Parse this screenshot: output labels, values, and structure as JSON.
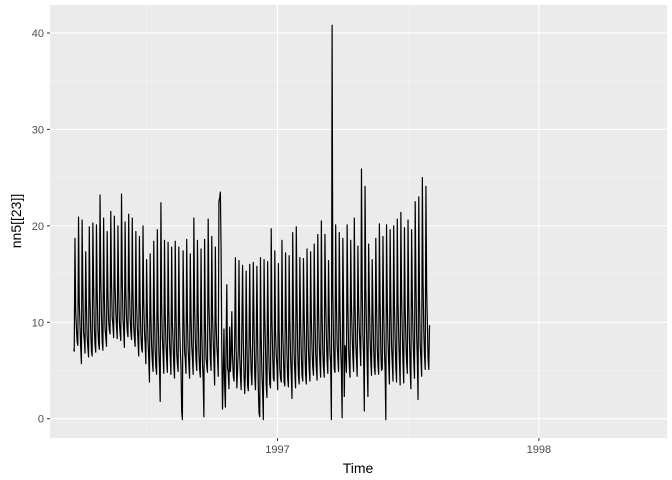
{
  "colors": {
    "panel": "#ebebeb",
    "grid_major": "#ffffff",
    "grid_minor": "#f5f5f5",
    "line": "#000000",
    "tick_text": "#4d4d4d"
  },
  "chart_data": {
    "type": "line",
    "title": "",
    "xlabel": "Time",
    "ylabel": "nn5[[23]]",
    "xlim": [
      1996.13,
      1998.49
    ],
    "ylim": [
      -2.0,
      42.9
    ],
    "x_ticks": [
      1997,
      1998
    ],
    "x_tick_labels": [
      "1997",
      "1998"
    ],
    "y_ticks": [
      0,
      10,
      20,
      30,
      40
    ],
    "y_tick_labels": [
      "0",
      "10",
      "20",
      "30",
      "40"
    ],
    "grid": true,
    "legend": "none",
    "x_start": 1996.22,
    "x_step": 0.0027397,
    "series": [
      {
        "values": [
          7.2,
          7.0,
          18.7,
          11.2,
          9.5,
          8.0,
          7.6,
          20.9,
          12.1,
          9.8,
          7.4,
          5.7,
          20.6,
          13.5,
          9.0,
          8.2,
          6.8,
          17.3,
          11.7,
          8.6,
          7.4,
          6.4,
          19.9,
          12.4,
          9.2,
          7.1,
          6.5,
          20.3,
          14.0,
          9.6,
          7.7,
          6.9,
          20.1,
          13.1,
          9.4,
          7.8,
          7.2,
          23.2,
          14.9,
          10.6,
          8.0,
          7.1,
          20.8,
          12.9,
          9.4,
          8.5,
          7.5,
          19.4,
          13.0,
          10.2,
          9.2,
          8.8,
          21.5,
          14.3,
          10.5,
          9.7,
          8.4,
          21.0,
          13.8,
          11.1,
          9.5,
          8.3,
          20.0,
          13.5,
          10.1,
          8.9,
          8.1,
          23.3,
          14.6,
          10.4,
          9.2,
          7.4,
          20.4,
          13.2,
          10.5,
          9.1,
          8.5,
          21.2,
          13.8,
          10.6,
          9.0,
          8.2,
          20.8,
          12.9,
          9.6,
          8.4,
          7.5,
          19.4,
          12.0,
          9.6,
          8.1,
          6.5,
          18.9,
          11.8,
          8.8,
          7.3,
          6.9,
          20.0,
          12.2,
          9.1,
          7.7,
          5.7,
          16.5,
          11.0,
          8.1,
          6.3,
          3.8,
          17.1,
          10.7,
          7.6,
          6.0,
          4.9,
          18.4,
          10.9,
          7.1,
          5.3,
          4.6,
          19.6,
          10.8,
          7.4,
          5.3,
          1.8,
          22.4,
          12.0,
          8.4,
          6.7,
          4.7,
          18.5,
          10.9,
          7.9,
          6.2,
          4.8,
          18.3,
          11.4,
          8.0,
          6.4,
          4.6,
          17.8,
          10.0,
          7.9,
          5.5,
          4.2,
          18.4,
          11.3,
          7.0,
          5.7,
          4.9,
          17.8,
          10.1,
          7.3,
          5.5,
          0.8,
          -0.1,
          17.4,
          10.9,
          7.0,
          6.2,
          4.7,
          18.6,
          10.3,
          7.2,
          5.7,
          4.2,
          17.1,
          10.8,
          7.6,
          6.3,
          4.6,
          20.8,
          11.6,
          8.3,
          6.1,
          5.0,
          18.5,
          11.3,
          7.0,
          5.2,
          4.3,
          17.6,
          9.3,
          5.8,
          4.1,
          0.2,
          18.6,
          10.2,
          6.4,
          5.5,
          4.8,
          20.7,
          12.2,
          8.9,
          6.1,
          5.0,
          18.9,
          10.9,
          8.2,
          5.9,
          3.5,
          17.8,
          10.1,
          7.6,
          6.4,
          4.4,
          22.5,
          22.9,
          23.5,
          17.6,
          6.9,
          1.0,
          4.7,
          9.3,
          3.5,
          1.2,
          7.8,
          13.9,
          5.3,
          4.8,
          3.1,
          9.5,
          4.9,
          6.6,
          11.1,
          6.4,
          4.5,
          3.9,
          8.2,
          16.7,
          7.6,
          3.2,
          5.0,
          7.2,
          16.4,
          6.6,
          4.4,
          3.0,
          9.3,
          15.9,
          8.4,
          4.5,
          2.6,
          5.1,
          15.3,
          8.4,
          3.5,
          2.9,
          7.6,
          16.0,
          7.7,
          4.8,
          3.5,
          7.9,
          16.2,
          9.5,
          4.6,
          3.0,
          7.2,
          15.8,
          8.3,
          3.2,
          0.6,
          0.2,
          16.7,
          8.4,
          4.7,
          2.8,
          -0.1,
          16.5,
          10.5,
          7.4,
          3.5,
          2.2,
          16.3,
          9.5,
          5.5,
          3.6,
          3.2,
          19.7,
          10.3,
          6.8,
          4.2,
          3.9,
          17.4,
          9.0,
          6.7,
          5.5,
          3.0,
          16.1,
          9.3,
          5.2,
          4.2,
          3.8,
          18.5,
          9.2,
          6.5,
          3.8,
          3.4,
          17.2,
          10.3,
          6.7,
          4.2,
          3.3,
          16.9,
          10.1,
          6.5,
          4.5,
          2.1,
          19.3,
          11.2,
          6.6,
          4.8,
          3.2,
          19.9,
          12.0,
          7.0,
          4.5,
          3.6,
          16.7,
          10.3,
          6.7,
          4.5,
          3.9,
          16.6,
          10.8,
          7.3,
          4.6,
          3.6,
          17.6,
          10.8,
          7.1,
          5.2,
          3.9,
          17.3,
          10.4,
          7.2,
          5.3,
          4.5,
          18.1,
          11.1,
          7.0,
          5.2,
          4.0,
          19.1,
          11.5,
          7.8,
          5.8,
          4.3,
          20.5,
          11.1,
          7.1,
          5.3,
          4.3,
          19.1,
          12.6,
          8.7,
          6.0,
          4.7,
          16.4,
          10.5,
          6.8,
          5.8,
          -0.1,
          40.8,
          13.2,
          7.9,
          5.2,
          4.8,
          20.1,
          12.2,
          7.8,
          6.3,
          4.9,
          19.3,
          11.5,
          7.2,
          5.1,
          0.1,
          18.7,
          11.9,
          2.3,
          7.6,
          7.1,
          4.8,
          20.1,
          12.1,
          7.3,
          5.5,
          4.3,
          18.5,
          11.7,
          8.8,
          6.4,
          4.9,
          20.8,
          11.9,
          7.9,
          6.2,
          4.4,
          17.9,
          11.8,
          9.3,
          7.3,
          5.5,
          25.9,
          13.6,
          8.7,
          6.4,
          0.8,
          24.1,
          13.6,
          9.4,
          5.7,
          2.3,
          18.1,
          12.5,
          8.4,
          6.0,
          4.5,
          16.5,
          11.3,
          7.4,
          5.3,
          4.6,
          18.7,
          12.2,
          7.5,
          5.6,
          4.6,
          20.2,
          12.1,
          7.1,
          5.0,
          5.2,
          18.9,
          11.4,
          7.3,
          5.0,
          -0.1,
          20.1,
          12.2,
          8.1,
          5.8,
          3.6,
          19.6,
          11.8,
          7.6,
          5.8,
          3.9,
          20.0,
          11.8,
          8.3,
          5.3,
          3.8,
          20.7,
          12.2,
          8.4,
          6.0,
          3.5,
          21.4,
          13.0,
          8.9,
          5.8,
          3.7,
          19.8,
          11.4,
          8.1,
          5.9,
          4.7,
          20.6,
          12.1,
          8.1,
          5.1,
          3.1,
          19.6,
          12.6,
          8.6,
          6.1,
          4.2,
          22.5,
          14.4,
          8.8,
          6.2,
          2.0,
          23.0,
          12.6,
          7.7,
          6.2,
          4.4,
          25.0,
          14.2,
          9.1,
          6.6,
          5.1,
          24.1,
          13.6,
          9.9,
          6.2,
          5.1,
          9.7
        ]
      }
    ]
  }
}
